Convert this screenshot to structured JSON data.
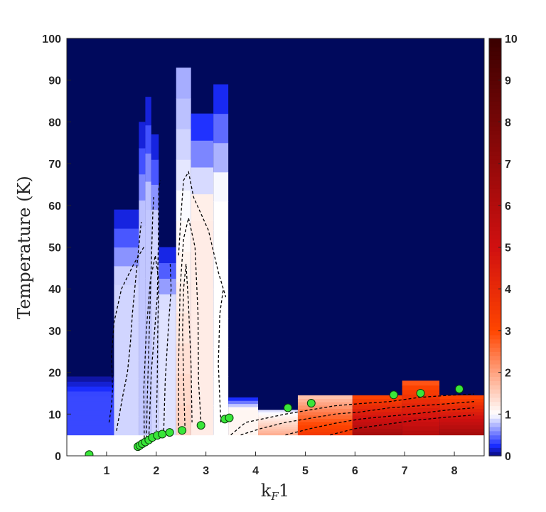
{
  "chart_data": {
    "type": "heatmap",
    "title": "",
    "xlabel": "kF1",
    "xlabel_main": "k",
    "xlabel_sub": "F",
    "xlabel_tail": "1",
    "ylabel": "Temperature (K)",
    "xlim": [
      0.2,
      8.6
    ],
    "ylim": [
      0,
      100
    ],
    "x_ticks": [
      1,
      2,
      3,
      4,
      5,
      6,
      7,
      8
    ],
    "y_ticks": [
      0,
      10,
      20,
      30,
      40,
      50,
      60,
      70,
      80,
      90,
      100
    ],
    "colorbar": {
      "range": [
        0,
        10
      ],
      "ticks": [
        0,
        1,
        2,
        3,
        4,
        5,
        6,
        7,
        8,
        9,
        10
      ],
      "colors": {
        "low": "#0a0a7a",
        "blue": "#1a2cff",
        "white": "#ffffff",
        "orange": "#ff4500",
        "red": "#d01010",
        "dark_red": "#3a0000"
      }
    },
    "background_color": "#00095c",
    "columns": [
      {
        "x0": 0.2,
        "x1": 1.15,
        "tmin": 5,
        "tmax": 19,
        "value": 0.35
      },
      {
        "x0": 1.15,
        "x1": 1.65,
        "tmin": 5,
        "tmax": 59,
        "value": 0.85
      },
      {
        "x0": 1.65,
        "x1": 1.78,
        "tmin": 5,
        "tmax": 80,
        "value": 0.8
      },
      {
        "x0": 1.78,
        "x1": 1.9,
        "tmin": 5,
        "tmax": 86,
        "value": 0.8
      },
      {
        "x0": 1.9,
        "x1": 2.05,
        "tmin": 5,
        "tmax": 77,
        "value": 0.85
      },
      {
        "x0": 2.05,
        "x1": 2.4,
        "tmin": 5,
        "tmax": 50,
        "value": 0.9
      },
      {
        "x0": 2.4,
        "x1": 2.7,
        "tmin": 5,
        "tmax": 93,
        "value": 1.5
      },
      {
        "x0": 2.7,
        "x1": 3.15,
        "tmin": 5,
        "tmax": 82,
        "value": 1.2
      },
      {
        "x0": 3.15,
        "x1": 3.45,
        "tmin": 5,
        "tmax": 89,
        "value": 1.0
      },
      {
        "x0": 3.45,
        "x1": 4.05,
        "tmin": 5,
        "tmax": 14,
        "value": 1.1
      },
      {
        "x0": 4.05,
        "x1": 4.85,
        "tmin": 5,
        "tmax": 11,
        "value": 1.9
      },
      {
        "x0": 4.85,
        "x1": 5.95,
        "tmin": 5,
        "tmax": 14.5,
        "value": 3.5
      },
      {
        "x0": 5.95,
        "x1": 6.95,
        "tmin": 5,
        "tmax": 14.5,
        "value": 6.5
      },
      {
        "x0": 6.95,
        "x1": 7.7,
        "tmin": 5,
        "tmax": 18,
        "value": 6.0
      },
      {
        "x0": 7.7,
        "x1": 8.6,
        "tmin": 5,
        "tmax": 14.5,
        "value": 6.5
      }
    ],
    "points": [
      {
        "x": 0.65,
        "y": 0.3
      },
      {
        "x": 1.63,
        "y": 2.2
      },
      {
        "x": 1.67,
        "y": 2.5
      },
      {
        "x": 1.72,
        "y": 2.9
      },
      {
        "x": 1.78,
        "y": 3.3
      },
      {
        "x": 1.85,
        "y": 3.8
      },
      {
        "x": 1.92,
        "y": 4.4
      },
      {
        "x": 2.02,
        "y": 4.9
      },
      {
        "x": 2.12,
        "y": 5.2
      },
      {
        "x": 2.27,
        "y": 5.6
      },
      {
        "x": 2.52,
        "y": 6.1
      },
      {
        "x": 2.9,
        "y": 7.3
      },
      {
        "x": 3.38,
        "y": 8.8
      },
      {
        "x": 3.47,
        "y": 9.1
      },
      {
        "x": 4.65,
        "y": 11.5
      },
      {
        "x": 5.12,
        "y": 12.6
      },
      {
        "x": 6.78,
        "y": 14.6
      },
      {
        "x": 7.32,
        "y": 15.0
      },
      {
        "x": 8.1,
        "y": 16.0
      }
    ],
    "contours": [
      [
        [
          1.2,
          6
        ],
        [
          1.32,
          14
        ],
        [
          1.42,
          20
        ],
        [
          1.48,
          27
        ],
        [
          1.52,
          34
        ],
        [
          1.6,
          44
        ],
        [
          1.68,
          54
        ],
        [
          1.7,
          56
        ]
      ],
      [
        [
          1.05,
          8
        ],
        [
          1.1,
          12
        ],
        [
          1.12,
          16
        ],
        [
          1.1,
          24
        ],
        [
          1.15,
          32
        ],
        [
          1.3,
          40
        ],
        [
          1.55,
          46
        ],
        [
          1.75,
          50
        ]
      ],
      [
        [
          1.8,
          3
        ],
        [
          1.82,
          14
        ],
        [
          1.86,
          30
        ],
        [
          1.9,
          46
        ],
        [
          1.93,
          58
        ],
        [
          1.95,
          62
        ]
      ],
      [
        [
          1.76,
          3
        ],
        [
          1.75,
          16
        ],
        [
          1.8,
          30
        ],
        [
          1.88,
          42
        ],
        [
          1.98,
          48
        ],
        [
          2.05,
          42
        ],
        [
          2.03,
          30
        ],
        [
          2.02,
          18
        ],
        [
          2.0,
          6
        ]
      ],
      [
        [
          1.85,
          4
        ],
        [
          1.9,
          20
        ],
        [
          2.02,
          38
        ],
        [
          2.04,
          50
        ],
        [
          2.05,
          64
        ],
        [
          2.08,
          66
        ]
      ],
      [
        [
          2.15,
          6
        ],
        [
          2.18,
          18
        ],
        [
          2.25,
          32
        ],
        [
          2.3,
          40
        ],
        [
          2.28,
          46
        ]
      ],
      [
        [
          2.58,
          6
        ],
        [
          2.55,
          18
        ],
        [
          2.53,
          30
        ],
        [
          2.55,
          40
        ],
        [
          2.6,
          46
        ],
        [
          2.65,
          36
        ],
        [
          2.7,
          22
        ],
        [
          2.72,
          8
        ]
      ],
      [
        [
          2.45,
          6
        ],
        [
          2.45,
          22
        ],
        [
          2.48,
          40
        ],
        [
          2.55,
          52
        ],
        [
          2.65,
          57
        ],
        [
          2.78,
          50
        ],
        [
          2.84,
          34
        ],
        [
          2.85,
          18
        ],
        [
          2.9,
          8
        ]
      ],
      [
        [
          2.45,
          48
        ],
        [
          2.5,
          58
        ],
        [
          2.55,
          66
        ],
        [
          2.65,
          68
        ],
        [
          2.75,
          62
        ],
        [
          2.9,
          58
        ],
        [
          3.05,
          54
        ],
        [
          3.25,
          44
        ],
        [
          3.4,
          38
        ]
      ],
      [
        [
          3.3,
          8
        ],
        [
          3.25,
          22
        ],
        [
          3.28,
          34
        ],
        [
          3.35,
          40
        ]
      ],
      [
        [
          3.5,
          5
        ],
        [
          3.8,
          8
        ],
        [
          4.2,
          9
        ],
        [
          4.6,
          10
        ],
        [
          5.1,
          11
        ],
        [
          5.6,
          12
        ],
        [
          6.1,
          12.5
        ],
        [
          6.7,
          13
        ],
        [
          7.3,
          14
        ],
        [
          7.9,
          14.5
        ],
        [
          8.4,
          14.8
        ]
      ],
      [
        [
          3.7,
          5
        ],
        [
          4.1,
          6.5
        ],
        [
          4.6,
          8
        ],
        [
          5.1,
          9
        ],
        [
          5.6,
          10
        ],
        [
          6.1,
          10.5
        ],
        [
          6.7,
          11.5
        ],
        [
          7.3,
          12
        ],
        [
          7.9,
          12.5
        ],
        [
          8.4,
          13
        ]
      ],
      [
        [
          4.6,
          5
        ],
        [
          5.1,
          6.5
        ],
        [
          5.6,
          7.8
        ],
        [
          6.1,
          8.8
        ],
        [
          6.7,
          9.5
        ],
        [
          7.3,
          10.2
        ],
        [
          7.9,
          11
        ],
        [
          8.4,
          11.5
        ]
      ],
      [
        [
          5.5,
          5
        ],
        [
          6.0,
          6.5
        ],
        [
          6.6,
          7.5
        ],
        [
          7.2,
          8.5
        ],
        [
          7.8,
          9.2
        ],
        [
          8.4,
          9.8
        ]
      ]
    ]
  }
}
